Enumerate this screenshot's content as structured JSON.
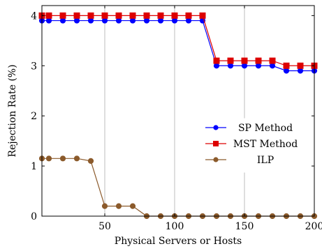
{
  "chart_data": {
    "type": "line",
    "title": "",
    "xlabel": "Physical Servers or Hosts",
    "ylabel": "Rejection Rate (%)",
    "xlim": [
      5,
      200
    ],
    "ylim": [
      0,
      4.2
    ],
    "xticks": [
      50,
      100,
      150,
      200
    ],
    "yticks": [
      0,
      1,
      2,
      3,
      4
    ],
    "grid": "vertical",
    "legend_position": "right-middle",
    "x": [
      5,
      10,
      20,
      30,
      40,
      50,
      60,
      70,
      80,
      90,
      100,
      110,
      120,
      130,
      140,
      150,
      160,
      170,
      180,
      190,
      200
    ],
    "series": [
      {
        "name": "SP Method",
        "color": "#0000ff",
        "marker": "circle",
        "values": [
          3.9,
          3.9,
          3.9,
          3.9,
          3.9,
          3.9,
          3.9,
          3.9,
          3.9,
          3.9,
          3.9,
          3.9,
          3.9,
          3.0,
          3.0,
          3.0,
          3.0,
          3.0,
          2.9,
          2.9,
          2.9
        ]
      },
      {
        "name": "MST Method",
        "color": "#dd0000",
        "marker": "square",
        "values": [
          4.0,
          4.0,
          4.0,
          4.0,
          4.0,
          4.0,
          4.0,
          4.0,
          4.0,
          4.0,
          4.0,
          4.0,
          4.0,
          3.1,
          3.1,
          3.1,
          3.1,
          3.1,
          3.0,
          3.0,
          3.0
        ]
      },
      {
        "name": "ILP",
        "color": "#8b5a2b",
        "marker": "circle",
        "values": [
          1.15,
          1.15,
          1.15,
          1.15,
          1.1,
          0.2,
          0.2,
          0.2,
          0.0,
          0.0,
          0.0,
          0.0,
          0.0,
          0.0,
          0.0,
          0.0,
          0.0,
          0.0,
          0.0,
          0.0,
          0.0
        ]
      }
    ]
  }
}
